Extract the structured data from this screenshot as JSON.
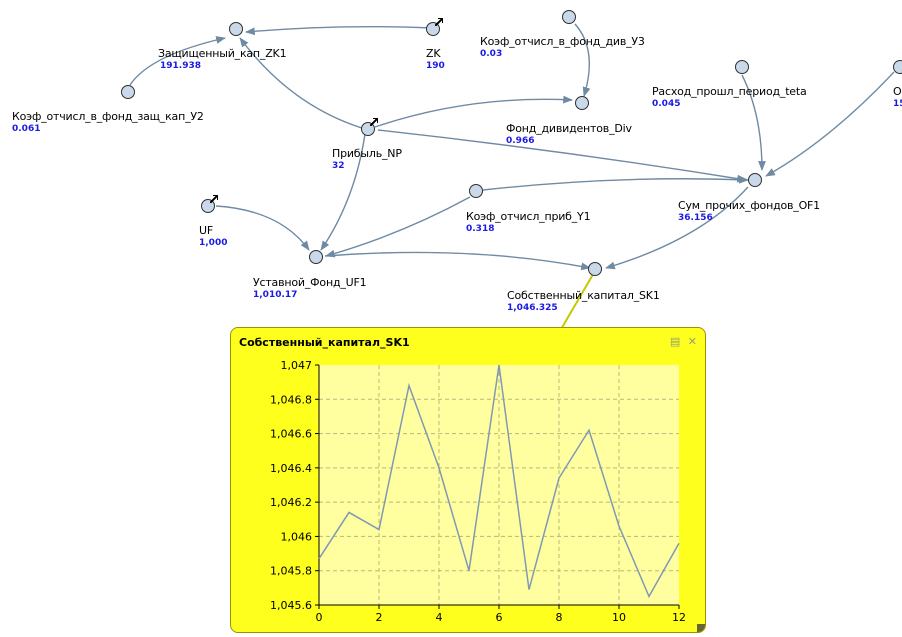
{
  "nodes": [
    {
      "id": "zk1",
      "label": "Защищенный_кап_ZK1",
      "value": "191.938"
    },
    {
      "id": "zk",
      "label": "ZK",
      "value": "190"
    },
    {
      "id": "y3",
      "label": "Коэф_отчисл_в_фонд_див_У3",
      "value": "0.03"
    },
    {
      "id": "y2",
      "label": "Коэф_отчисл_в_фонд_защ_кап_У2",
      "value": "0.061"
    },
    {
      "id": "np",
      "label": "Прибыль_NP",
      "value": "32"
    },
    {
      "id": "div",
      "label": "Фонд_дивидентов_Div",
      "value": "0.966"
    },
    {
      "id": "teta",
      "label": "Расход_прошл_период_teta",
      "value": "0.045"
    },
    {
      "id": "o",
      "label": "О",
      "value": "15"
    },
    {
      "id": "of1",
      "label": "Сум_прочих_фондов_OF1",
      "value": "36.156"
    },
    {
      "id": "y1",
      "label": "Коэф_отчисл_приб_Y1",
      "value": "0.318"
    },
    {
      "id": "uf",
      "label": "UF",
      "value": "1,000"
    },
    {
      "id": "uf1",
      "label": "Уставной_Фонд_UF1",
      "value": "1,010.17"
    },
    {
      "id": "sk1",
      "label": "Собственный_капитал_SK1",
      "value": "1,046.325"
    }
  ],
  "popup": {
    "title": "Собственный_капитал_SK1",
    "icon_expand": "expand-icon",
    "icon_close": "close-icon",
    "bg_color": "#ffff1e",
    "plot_color": "#ffffa0",
    "line_color": "#7f99b5"
  },
  "chart_data": {
    "type": "line",
    "title": "Собственный_капитал_SK1",
    "x": [
      0,
      1,
      2,
      3,
      4,
      5,
      6,
      7,
      8,
      9,
      10,
      11,
      12
    ],
    "series": [
      {
        "values": [
          1045.87,
          1046.14,
          1046.04,
          1046.88,
          1046.4,
          1045.8,
          1047.0,
          1045.69,
          1046.34,
          1046.62,
          1046.06,
          1045.65,
          1045.96
        ]
      }
    ],
    "xlim": [
      0,
      12
    ],
    "ylim": [
      1045.6,
      1047.0
    ],
    "xticks": [
      "0",
      "2",
      "4",
      "6",
      "8",
      "10",
      "12"
    ],
    "yticks": [
      "1,045.6",
      "1,045.8",
      "1,046",
      "1,046.2",
      "1,046.4",
      "1,046.6",
      "1,046.8",
      "1,047"
    ],
    "grid": true
  }
}
